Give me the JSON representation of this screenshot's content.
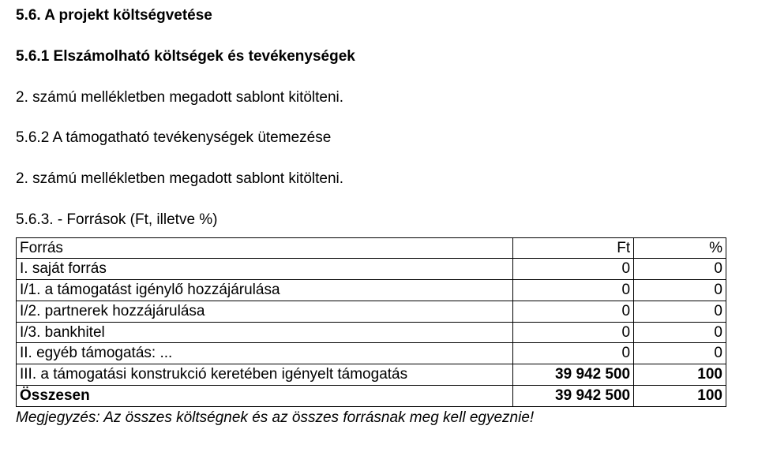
{
  "headings": {
    "h1": "5.6. A projekt költségvetése",
    "h2": "5.6.1 Elszámolható költségek és tevékenységek",
    "p1": "2. számú mellékletben megadott sablont kitölteni.",
    "h3": "5.6.2 A támogatható tevékenységek ütemezése",
    "p2": "2. számú mellékletben megadott sablont kitölteni.",
    "h4": "5.6.3. - Források (Ft, illetve %)"
  },
  "table": {
    "header": {
      "label": "Forrás",
      "ft": "Ft",
      "pct": "%"
    },
    "rows": [
      {
        "label": "I. saját forrás",
        "ft": "0",
        "pct": "0"
      },
      {
        "label": "I/1. a támogatást igénylő hozzájárulása",
        "ft": "0",
        "pct": "0"
      },
      {
        "label": "I/2. partnerek hozzájárulása",
        "ft": "0",
        "pct": "0"
      },
      {
        "label": "I/3. bankhitel",
        "ft": "0",
        "pct": "0"
      },
      {
        "label": "II. egyéb támogatás: ...",
        "ft": "0",
        "pct": "0"
      },
      {
        "label": "III. a támogatási konstrukció keretében igényelt támogatás",
        "ft": "39 942 500",
        "pct": "100"
      }
    ],
    "total": {
      "label": "Összesen",
      "ft": "39 942 500",
      "pct": "100"
    }
  },
  "note": "Megjegyzés: Az összes költségnek és az összes forrásnak meg kell egyeznie!",
  "style": {
    "font_family": "Verdana",
    "base_font_size_pt": 14,
    "text_color": "#000000",
    "background_color": "#ffffff",
    "table_border_color": "#000000",
    "col_widths_pct": [
      70,
      17,
      13
    ]
  }
}
